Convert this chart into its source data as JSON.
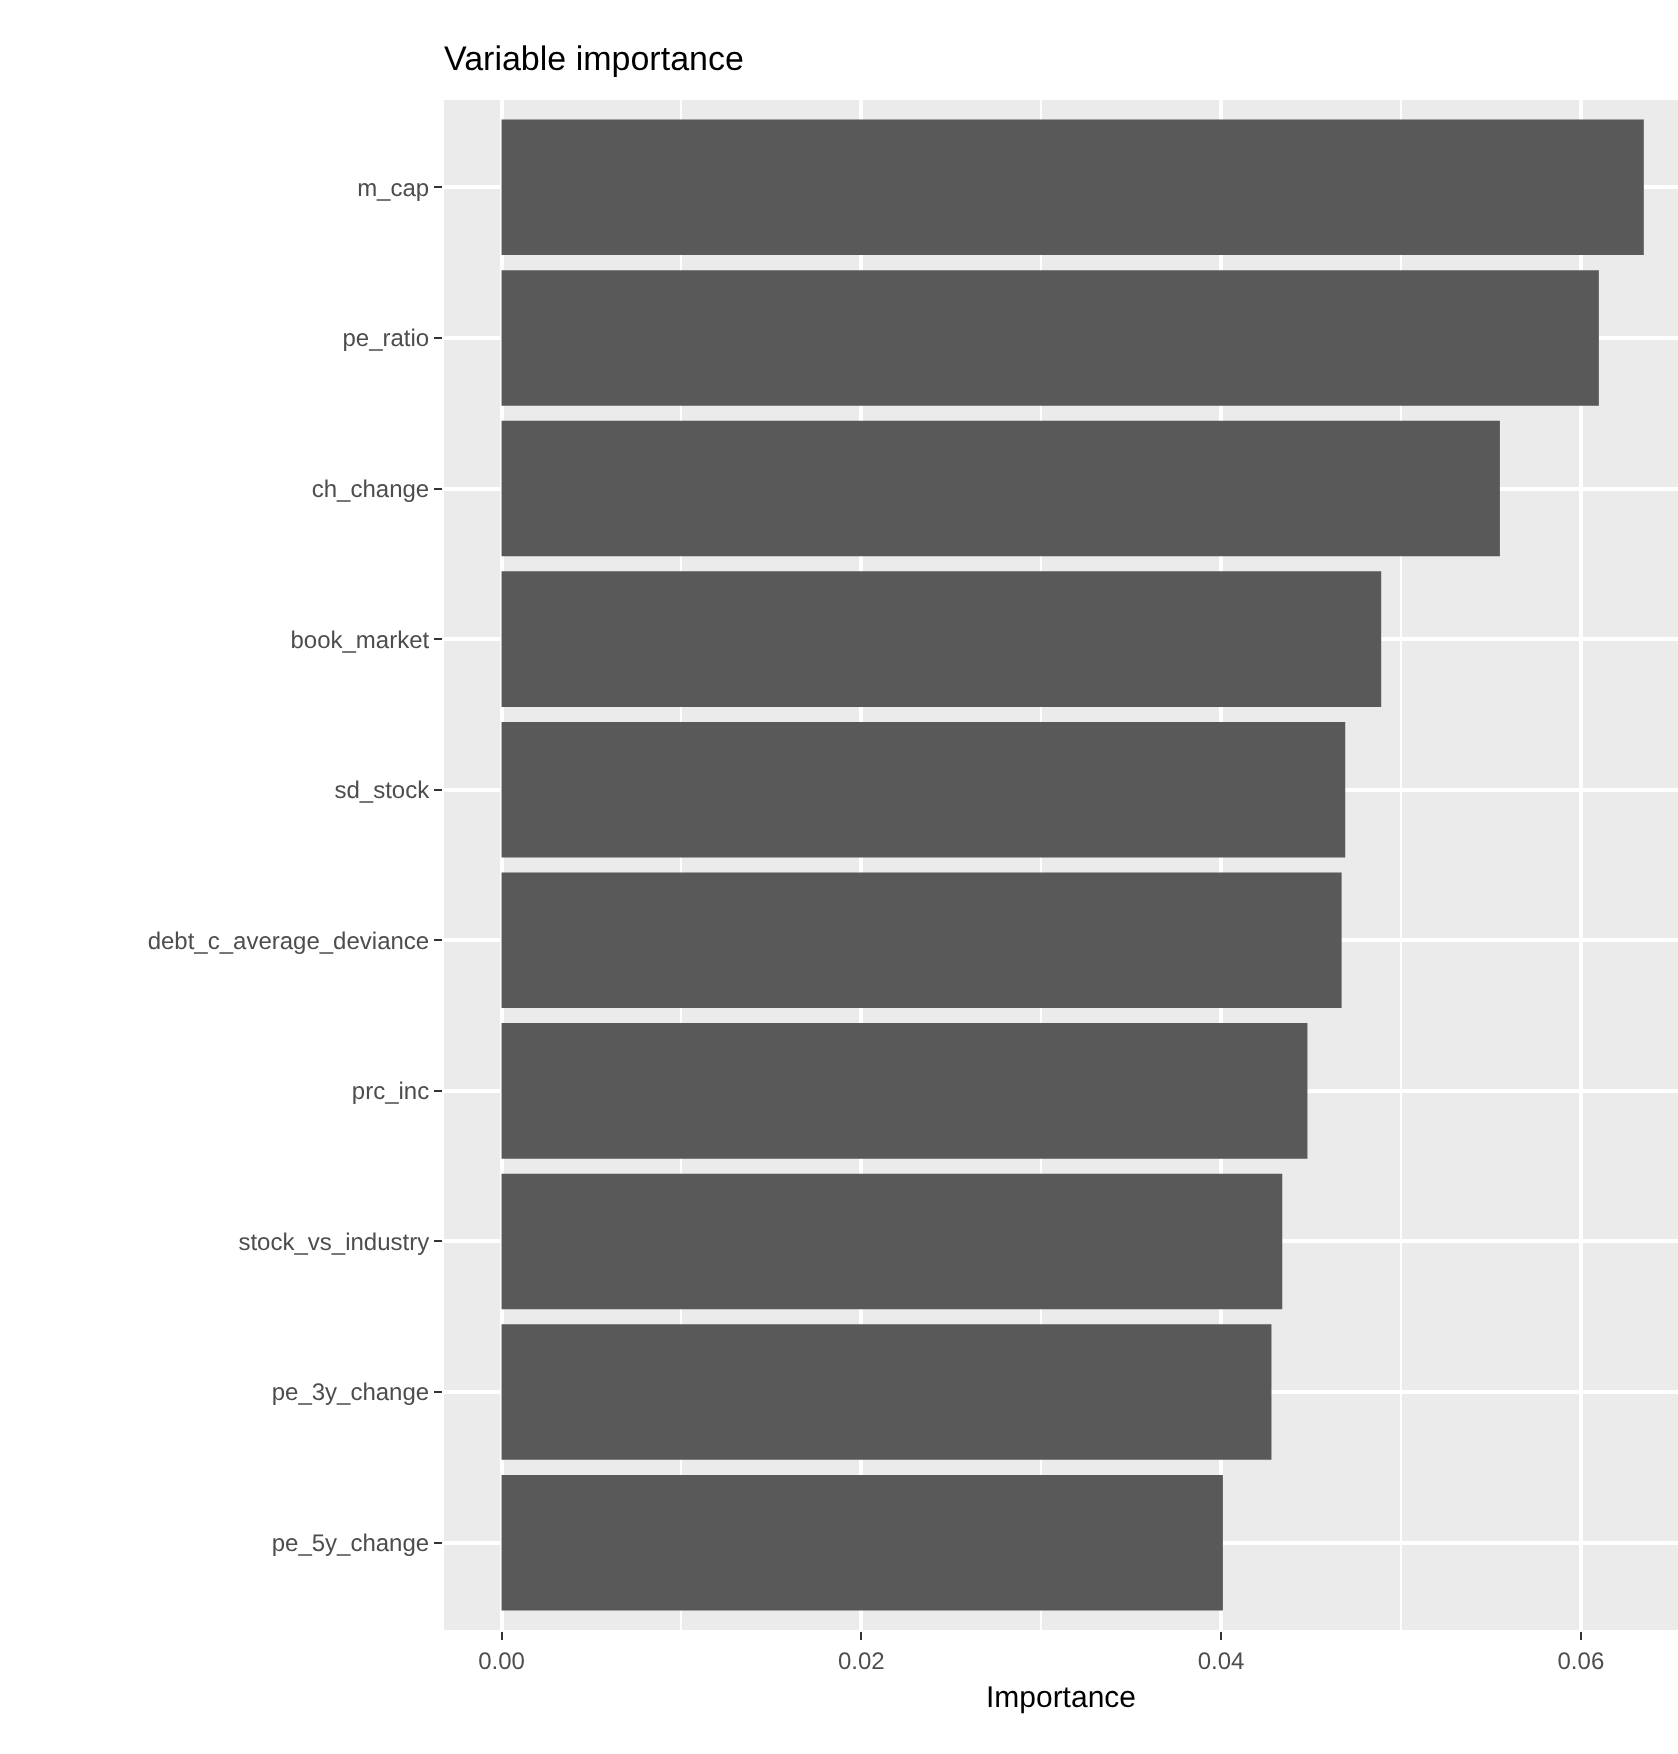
{
  "chart_data": {
    "type": "bar",
    "orientation": "horizontal",
    "title": "Variable importance",
    "xlabel": "Importance",
    "categories": [
      "m_cap",
      "pe_ratio",
      "ch_change",
      "book_market",
      "sd_stock",
      "debt_c_average_deviance",
      "prc_inc",
      "stock_vs_industry",
      "pe_3y_change",
      "pe_5y_change"
    ],
    "values": [
      0.0635,
      0.061,
      0.0555,
      0.0489,
      0.0469,
      0.0467,
      0.0448,
      0.0434,
      0.0428,
      0.0401
    ],
    "color": "#595959",
    "xlim": [
      -0.0032,
      0.0654
    ],
    "xticks": [
      {
        "value": 0,
        "label": "0.00"
      },
      {
        "value": 0.02,
        "label": "0.02"
      },
      {
        "value": 0.04,
        "label": "0.04"
      },
      {
        "value": 0.06,
        "label": "0.06"
      }
    ],
    "grid": true,
    "legend": false
  }
}
